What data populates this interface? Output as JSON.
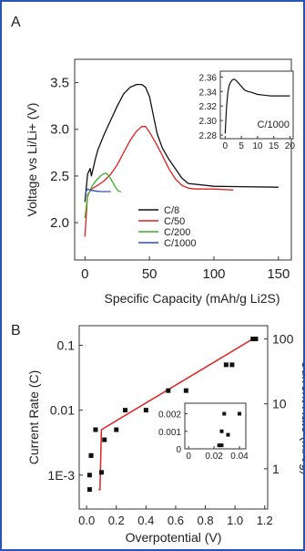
{
  "chart_data": [
    {
      "panel_label": "A",
      "type": "line",
      "xlabel": "Specific Capacity (mAh/g Li2S)",
      "ylabel": "Voltage vs Li/Li+ (V)",
      "xlim": [
        -8,
        160
      ],
      "ylim": [
        1.6,
        3.75
      ],
      "xticks": [
        0,
        50,
        100,
        150
      ],
      "yticks": [
        2.0,
        2.5,
        3.0,
        3.5
      ],
      "ytick_labels": [
        "2.0",
        "2.5",
        "3.0",
        "3.5"
      ],
      "legend_position": "bottom-center",
      "series": [
        {
          "name": "C/8",
          "color": "#111111",
          "x": [
            0,
            2,
            4,
            5,
            7,
            8,
            10,
            15,
            20,
            25,
            30,
            35,
            40,
            44,
            47,
            50,
            53,
            56,
            60,
            65,
            70,
            75,
            80,
            100,
            150
          ],
          "y": [
            2.22,
            2.52,
            2.58,
            2.5,
            2.62,
            2.68,
            2.78,
            2.95,
            3.1,
            3.25,
            3.38,
            3.45,
            3.48,
            3.48,
            3.45,
            3.35,
            3.15,
            2.95,
            2.8,
            2.68,
            2.58,
            2.48,
            2.42,
            2.39,
            2.38
          ]
        },
        {
          "name": "C/50",
          "color": "#e02020",
          "x": [
            0,
            2,
            5,
            10,
            15,
            20,
            25,
            30,
            35,
            40,
            44,
            47,
            50,
            55,
            60,
            65,
            70,
            75,
            80,
            85,
            100,
            115
          ],
          "y": [
            1.85,
            2.3,
            2.36,
            2.4,
            2.45,
            2.52,
            2.62,
            2.75,
            2.88,
            2.98,
            3.03,
            3.03,
            2.97,
            2.85,
            2.72,
            2.58,
            2.47,
            2.4,
            2.37,
            2.36,
            2.36,
            2.35
          ]
        },
        {
          "name": "C/200",
          "color": "#3ab02a",
          "x": [
            0,
            2,
            4,
            6,
            8,
            10,
            12,
            14,
            16,
            18,
            20,
            22,
            24,
            26,
            28
          ],
          "y": [
            2.05,
            2.28,
            2.35,
            2.4,
            2.44,
            2.47,
            2.5,
            2.52,
            2.53,
            2.51,
            2.47,
            2.42,
            2.37,
            2.34,
            2.33
          ]
        },
        {
          "name": "C/1000",
          "color": "#2a4ad0",
          "x": [
            0,
            1,
            2,
            3,
            4,
            6,
            8,
            10,
            12,
            15,
            18,
            20
          ],
          "y": [
            2.28,
            2.34,
            2.36,
            2.355,
            2.35,
            2.345,
            2.34,
            2.336,
            2.334,
            2.333,
            2.333,
            2.333
          ]
        }
      ],
      "inset": {
        "type": "line",
        "label": "C/1000",
        "xlim": [
          -1.5,
          21
        ],
        "ylim": [
          2.275,
          2.368
        ],
        "xticks": [
          0,
          5,
          10,
          15,
          20
        ],
        "yticks": [
          2.28,
          2.3,
          2.32,
          2.34,
          2.36
        ],
        "ytick_labels": [
          "2.28",
          "2.30",
          "2.32",
          "2.34",
          "2.36"
        ],
        "series": [
          {
            "name": "C/1000",
            "color": "#111111",
            "x": [
              0,
              0.4,
              0.8,
              1.2,
              1.6,
              2.2,
              2.8,
              3.4,
              4,
              5,
              6,
              7,
              8,
              10,
              12,
              14,
              16,
              18,
              20
            ],
            "y": [
              2.282,
              2.318,
              2.338,
              2.348,
              2.352,
              2.356,
              2.357,
              2.355,
              2.352,
              2.347,
              2.342,
              2.34,
              2.339,
              2.336,
              2.335,
              2.334,
              2.334,
              2.334,
              2.334
            ]
          }
        ]
      }
    },
    {
      "panel_label": "B",
      "type": "scatter",
      "xlabel": "Overpotential (V)",
      "ylabel": "Current Rate (C)",
      "y2label": "Current Rate (mA/g)",
      "yscale": "log",
      "xlim": [
        -0.05,
        1.22
      ],
      "ylim": [
        0.0003,
        0.2
      ],
      "xticks": [
        0.0,
        0.2,
        0.4,
        0.6,
        0.8,
        1.0,
        1.2
      ],
      "xtick_labels": [
        "0.0",
        "0.2",
        "0.4",
        "0.6",
        "0.8",
        "1.0",
        "1.2"
      ],
      "yticks": [
        0.001,
        0.01,
        0.1
      ],
      "ytick_labels": [
        "1E-3",
        "0.01",
        "0.1"
      ],
      "y2ticks": [
        1,
        10,
        100
      ],
      "y2tick_labels": [
        "1",
        "10",
        "100"
      ],
      "points": {
        "color": "#111111",
        "x": [
          0.02,
          0.02,
          0.03,
          0.03,
          0.06,
          0.1,
          0.12,
          0.2,
          0.26,
          0.4,
          0.55,
          0.67,
          0.94,
          0.98,
          1.12,
          1.14
        ],
        "y": [
          0.0006,
          0.001,
          0.002,
          0.002,
          0.005,
          0.0011,
          0.0035,
          0.005,
          0.01,
          0.01,
          0.02,
          0.02,
          0.05,
          0.05,
          0.125,
          0.125
        ]
      },
      "fit_line": {
        "color": "#e02020",
        "x": [
          0.08,
          0.09,
          0.1,
          1.12
        ],
        "y": [
          0.0006,
          0.0006,
          0.005,
          0.125
        ]
      },
      "inset": {
        "type": "scatter",
        "xlim": [
          -0.003,
          0.045
        ],
        "ylim": [
          0,
          0.0026
        ],
        "xticks": [
          0,
          0.02,
          0.04
        ],
        "xtick_labels": [
          "0",
          "0.02",
          "0.04"
        ],
        "yticks": [
          0,
          0.001,
          0.002
        ],
        "ytick_labels": [
          "0",
          "0.001",
          "0.002"
        ],
        "points": {
          "x": [
            0.024,
            0.026,
            0.026,
            0.028,
            0.031,
            0.04
          ],
          "y": [
            0.0002,
            0.0002,
            0.001,
            0.002,
            0.0008,
            0.002
          ]
        }
      }
    }
  ]
}
